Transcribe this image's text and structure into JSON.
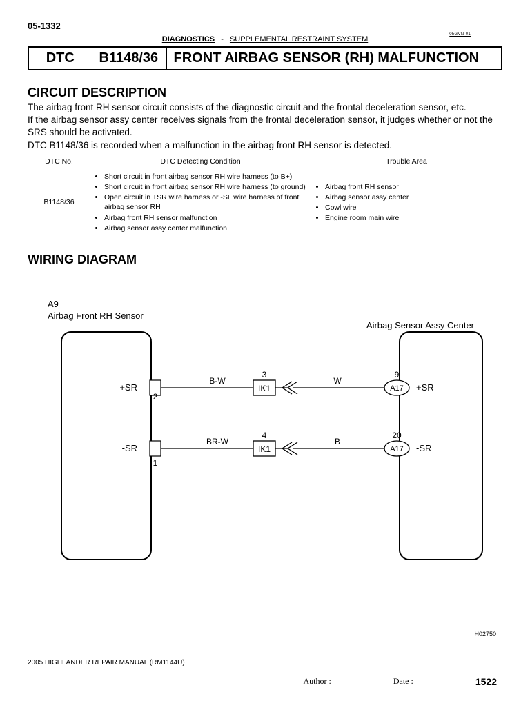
{
  "page_header": {
    "top_code": "05-1332",
    "crumb1": "DIAGNOSTICS",
    "crumb_sep": "-",
    "crumb2": "SUPPLEMENTAL RESTRAINT SYSTEM",
    "tiny_code": "05GVN-01"
  },
  "dtc_row": {
    "c1": "DTC",
    "c2": "B1148/36",
    "c3": "FRONT AIRBAG SENSOR (RH) MALFUNCTION"
  },
  "circuit_desc": {
    "heading": "CIRCUIT DESCRIPTION",
    "p1": "The airbag front RH sensor circuit consists of the diagnostic circuit and the frontal deceleration sensor, etc.",
    "p2": "If the airbag sensor assy center receives signals from the frontal deceleration sensor, it judges whether or not the SRS should be activated.",
    "p3": "DTC B1148/36 is recorded when a malfunction in the airbag front RH sensor is detected."
  },
  "cond_table": {
    "h1": "DTC No.",
    "h2": "DTC Detecting Condition",
    "h3": "Trouble Area",
    "dtc_no": "B1148/36",
    "conditions": [
      "Short circuit in front airbag sensor RH wire harness (to B+)",
      "Short circuit in front airbag sensor RH wire harness (to ground)",
      "Open circuit in +SR wire harness or -SL wire harness of front airbag sensor RH",
      "Airbag front RH sensor malfunction",
      "Airbag sensor assy center malfunction"
    ],
    "trouble": [
      "Airbag front RH sensor",
      "Airbag sensor assy center",
      "Cowl wire",
      "Engine room main wire"
    ]
  },
  "wiring": {
    "heading": "WIRING DIAGRAM",
    "left_label_1": "A9",
    "left_label_2": "Airbag Front RH Sensor",
    "right_label": "Airbag Sensor Assy Center",
    "top_wire": {
      "pin_left": "2",
      "sig_left": "+SR",
      "color_left": "B-W",
      "conn": "IK1",
      "conn_num": "3",
      "color_right": "W",
      "right_conn": "A17",
      "right_num": "9",
      "sig_right": "+SR"
    },
    "bot_wire": {
      "pin_left": "1",
      "sig_left": "-SR",
      "color_left": "BR-W",
      "conn": "IK1",
      "conn_num": "4",
      "color_right": "B",
      "right_conn": "A17",
      "right_num": "20",
      "sig_right": "-SR"
    },
    "fig_code": "H02750"
  },
  "footer": {
    "manual": "2005 HIGHLANDER REPAIR MANUAL   (RM1144U)",
    "author_lbl": "Author :",
    "date_lbl": "Date :",
    "page": "1522"
  }
}
